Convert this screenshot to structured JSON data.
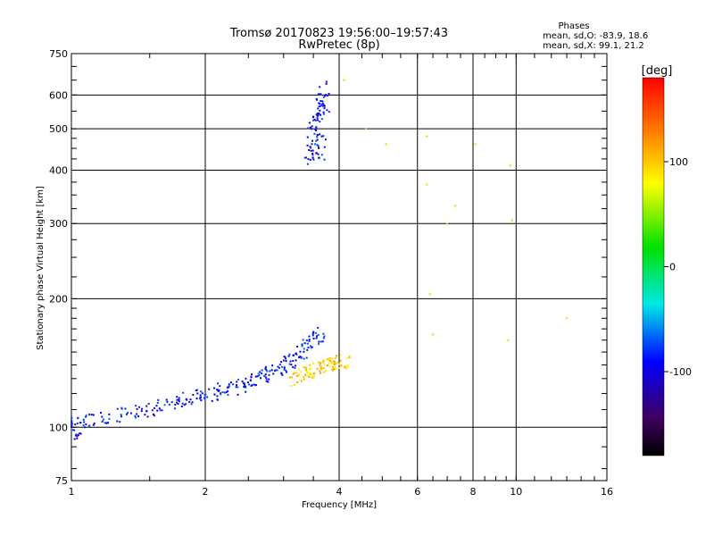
{
  "chart_data": {
    "type": "scatter",
    "title": "Tromsø 20170823 19:56:00–19:57:43",
    "subtitle": "RwPretec (8p)",
    "xlabel": "Frequency [MHz]",
    "ylabel": "Stationary phase Virtual Height [km]",
    "x_scale": "log",
    "y_scale": "log",
    "xlim": [
      1,
      16
    ],
    "ylim": [
      75,
      750
    ],
    "x_ticks": [
      1,
      2,
      4,
      6,
      8,
      10,
      16
    ],
    "y_ticks": [
      75,
      100,
      200,
      300,
      400,
      500,
      600,
      750
    ],
    "grid": true,
    "stats": {
      "heading": "Phases",
      "line_o": "mean, sd,O: -83.9, 18.6",
      "line_x": "mean, sd,X:  99.1, 21.2"
    },
    "colorbar": {
      "label": "[deg]",
      "range": [
        -180,
        180
      ],
      "ticks": [
        "100",
        "0",
        "-100"
      ],
      "tick_values": [
        100,
        0,
        -100
      ]
    },
    "series": [
      {
        "name": "O-mode trace (blue, ~-85°)",
        "phase": -85,
        "points": [
          [
            1.0,
            102
          ],
          [
            1.02,
            97
          ],
          [
            1.05,
            103
          ],
          [
            1.1,
            104
          ],
          [
            1.2,
            106
          ],
          [
            1.3,
            107
          ],
          [
            1.4,
            109
          ],
          [
            1.5,
            110
          ],
          [
            1.6,
            112
          ],
          [
            1.7,
            114
          ],
          [
            1.8,
            116
          ],
          [
            1.9,
            118
          ],
          [
            2.0,
            119
          ],
          [
            2.1,
            120
          ],
          [
            2.2,
            122
          ],
          [
            2.3,
            124
          ],
          [
            2.4,
            126
          ],
          [
            2.5,
            128
          ],
          [
            2.6,
            130
          ],
          [
            2.7,
            132
          ],
          [
            2.8,
            135
          ],
          [
            2.9,
            137
          ],
          [
            3.0,
            140
          ],
          [
            3.1,
            143
          ],
          [
            3.2,
            146
          ],
          [
            3.3,
            150
          ],
          [
            3.4,
            155
          ],
          [
            3.5,
            160
          ],
          [
            3.6,
            165
          ]
        ]
      },
      {
        "name": "X-mode trace (yellow, ~100°)",
        "phase": 100,
        "points": [
          [
            3.2,
            130
          ],
          [
            3.3,
            132
          ],
          [
            3.4,
            134
          ],
          [
            3.5,
            136
          ],
          [
            3.6,
            137
          ],
          [
            3.7,
            139
          ],
          [
            3.8,
            140
          ],
          [
            3.9,
            141
          ],
          [
            4.0,
            142
          ],
          [
            4.1,
            143
          ]
        ]
      },
      {
        "name": "F-region echoes (blue, ~-90°)",
        "phase": -90,
        "points": [
          [
            3.45,
            430
          ],
          [
            3.5,
            460
          ],
          [
            3.55,
            500
          ],
          [
            3.6,
            540
          ],
          [
            3.65,
            580
          ],
          [
            3.7,
            620
          ],
          [
            3.6,
            440
          ],
          [
            3.5,
            520
          ],
          [
            3.65,
            470
          ],
          [
            3.7,
            560
          ]
        ]
      },
      {
        "name": "Scattered echoes",
        "phase": 60,
        "points": [
          [
            6.3,
            480
          ],
          [
            6.3,
            370
          ],
          [
            6.4,
            205
          ],
          [
            6.5,
            165
          ],
          [
            7.0,
            300
          ],
          [
            7.3,
            330
          ],
          [
            8.1,
            460
          ],
          [
            9.7,
            410
          ],
          [
            9.8,
            305
          ],
          [
            13.0,
            180
          ],
          [
            9.6,
            160
          ],
          [
            4.6,
            500
          ],
          [
            5.1,
            460
          ],
          [
            4.1,
            650
          ]
        ]
      }
    ]
  }
}
